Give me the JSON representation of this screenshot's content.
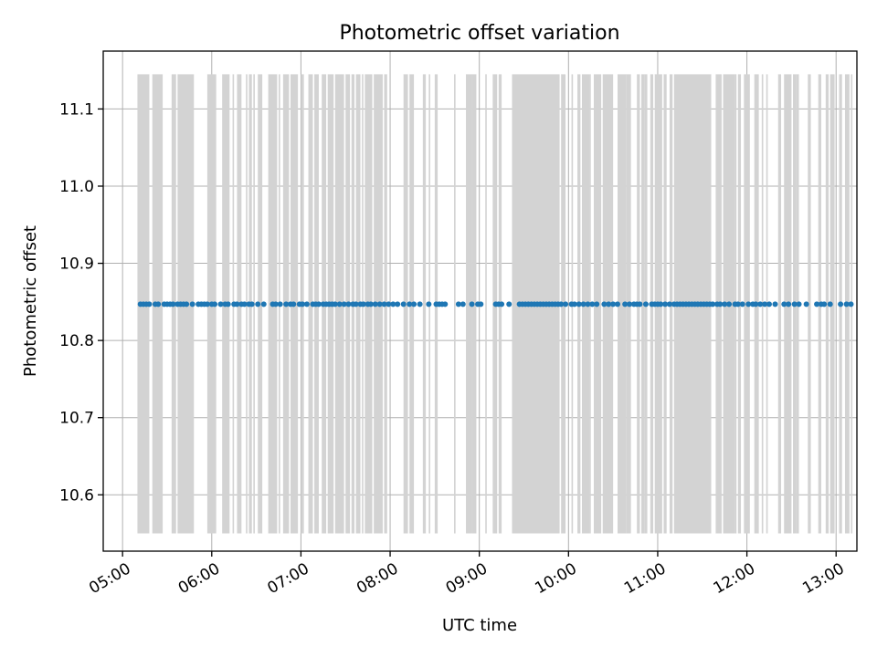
{
  "chart_data": {
    "type": "scatter",
    "title": "Photometric offset variation",
    "xlabel": "UTC time",
    "ylabel": "Photometric offset",
    "xlim": [
      "04:47",
      "13:14"
    ],
    "ylim": [
      10.527,
      11.175
    ],
    "grid": true,
    "x_tick_labels": [
      "05:00",
      "06:00",
      "07:00",
      "08:00",
      "09:00",
      "10:00",
      "11:00",
      "12:00",
      "13:00"
    ],
    "y_tick_labels": [
      "10.6",
      "10.7",
      "10.8",
      "10.9",
      "11.0",
      "11.1"
    ],
    "y_ticks": [
      10.6,
      10.7,
      10.8,
      10.9,
      11.0,
      11.1
    ],
    "shaded_band_y": [
      10.55,
      11.145
    ],
    "shaded_bands_utc": [
      [
        "05:10",
        "05:18"
      ],
      [
        "05:20",
        "05:27"
      ],
      [
        "05:33",
        "05:36"
      ],
      [
        "05:37",
        "05:46"
      ],
      [
        "05:46",
        "05:48"
      ],
      [
        "05:57",
        "06:03"
      ],
      [
        "06:07",
        "06:12"
      ],
      [
        "06:14",
        "06:15"
      ],
      [
        "06:17",
        "06:20"
      ],
      [
        "06:23",
        "06:24"
      ],
      [
        "06:25",
        "06:27"
      ],
      [
        "06:28",
        "06:29"
      ],
      [
        "06:31",
        "06:34"
      ],
      [
        "06:38",
        "06:44"
      ],
      [
        "06:45",
        "06:46"
      ],
      [
        "06:48",
        "06:52"
      ],
      [
        "06:53",
        "06:58"
      ],
      [
        "07:00",
        "07:02"
      ],
      [
        "07:05",
        "07:08"
      ],
      [
        "07:09",
        "07:12"
      ],
      [
        "07:14",
        "07:17"
      ],
      [
        "07:18",
        "07:22"
      ],
      [
        "07:23",
        "07:29"
      ],
      [
        "07:30",
        "07:33"
      ],
      [
        "07:34",
        "07:36"
      ],
      [
        "07:37",
        "07:40"
      ],
      [
        "07:41",
        "07:42"
      ],
      [
        "07:43",
        "07:48"
      ],
      [
        "07:49",
        "07:55"
      ],
      [
        "07:56",
        "07:58"
      ],
      [
        "08:09",
        "08:12"
      ],
      [
        "08:13",
        "08:16"
      ],
      [
        "08:22",
        "08:24"
      ],
      [
        "08:26",
        "08:27"
      ],
      [
        "08:30",
        "08:32"
      ],
      [
        "08:43",
        "08:44"
      ],
      [
        "08:51",
        "08:55"
      ],
      [
        "08:55",
        "08:58"
      ],
      [
        "09:04",
        "09:05"
      ],
      [
        "09:09",
        "09:12"
      ],
      [
        "09:13",
        "09:15"
      ],
      [
        "09:22",
        "09:26"
      ],
      [
        "09:26",
        "09:54"
      ],
      [
        "09:55",
        "09:58"
      ],
      [
        "10:02",
        "10:03"
      ],
      [
        "10:06",
        "10:08"
      ],
      [
        "10:09",
        "10:14"
      ],
      [
        "10:14",
        "10:15"
      ],
      [
        "10:17",
        "10:22"
      ],
      [
        "10:23",
        "10:30"
      ],
      [
        "10:33",
        "10:39"
      ],
      [
        "10:39",
        "10:42"
      ],
      [
        "10:46",
        "10:48"
      ],
      [
        "10:49",
        "10:51"
      ],
      [
        "10:51",
        "10:53"
      ],
      [
        "10:55",
        "10:57"
      ],
      [
        "10:58",
        "11:03"
      ],
      [
        "11:04",
        "11:06"
      ],
      [
        "11:08",
        "11:10"
      ],
      [
        "11:11",
        "11:36"
      ],
      [
        "11:39",
        "11:43"
      ],
      [
        "11:44",
        "11:52"
      ],
      [
        "11:52",
        "11:53"
      ],
      [
        "11:54",
        "11:56"
      ],
      [
        "11:58",
        "12:02"
      ],
      [
        "12:05",
        "12:08"
      ],
      [
        "12:10",
        "12:11"
      ],
      [
        "12:13",
        "12:14"
      ],
      [
        "12:21",
        "12:23"
      ],
      [
        "12:25",
        "12:30"
      ],
      [
        "12:31",
        "12:33"
      ],
      [
        "12:33",
        "12:35"
      ],
      [
        "12:41",
        "12:43"
      ],
      [
        "12:48",
        "12:50"
      ],
      [
        "12:53",
        "12:55"
      ],
      [
        "12:56",
        "12:59"
      ],
      [
        "13:02",
        "13:04"
      ],
      [
        "13:06",
        "13:09"
      ],
      [
        "13:10",
        "13:11"
      ]
    ],
    "point_y": 10.847,
    "point_color": "#1f77b4",
    "band_color": "#d3d3d3",
    "points_utc": [
      "05:12",
      "05:14",
      "05:16",
      "05:18",
      "05:22",
      "05:24",
      "05:28",
      "05:30",
      "05:32",
      "05:34",
      "05:37",
      "05:39",
      "05:41",
      "05:43",
      "05:47",
      "05:51",
      "05:53",
      "05:55",
      "05:57",
      "06:00",
      "06:02",
      "06:06",
      "06:09",
      "06:11",
      "06:15",
      "06:17",
      "06:20",
      "06:22",
      "06:25",
      "06:27",
      "06:31",
      "06:35",
      "06:41",
      "06:43",
      "06:46",
      "06:50",
      "06:53",
      "06:55",
      "06:59",
      "07:01",
      "07:04",
      "07:08",
      "07:10",
      "07:12",
      "07:15",
      "07:17",
      "07:19",
      "07:21",
      "07:23",
      "07:26",
      "07:29",
      "07:32",
      "07:35",
      "07:37",
      "07:40",
      "07:42",
      "07:45",
      "07:47",
      "07:50",
      "07:53",
      "07:56",
      "07:59",
      "08:02",
      "08:05",
      "08:09",
      "08:13",
      "08:16",
      "08:20",
      "08:26",
      "08:31",
      "08:33",
      "08:35",
      "08:37",
      "08:46",
      "08:49",
      "08:55",
      "08:59",
      "09:01",
      "09:11",
      "09:13",
      "09:15",
      "09:20",
      "09:27",
      "09:29",
      "09:31",
      "09:33",
      "09:35",
      "09:37",
      "09:39",
      "09:41",
      "09:43",
      "09:45",
      "09:47",
      "09:49",
      "09:51",
      "09:53",
      "09:55",
      "09:58",
      "10:02",
      "10:04",
      "10:07",
      "10:10",
      "10:13",
      "10:16",
      "10:19",
      "10:24",
      "10:27",
      "10:30",
      "10:33",
      "10:38",
      "10:41",
      "10:44",
      "10:46",
      "10:48",
      "10:52",
      "10:56",
      "10:58",
      "11:00",
      "11:02",
      "11:05",
      "11:08",
      "11:11",
      "11:13",
      "11:15",
      "11:17",
      "11:19",
      "11:21",
      "11:23",
      "11:25",
      "11:27",
      "11:29",
      "11:31",
      "11:33",
      "11:35",
      "11:37",
      "11:40",
      "11:42",
      "11:45",
      "11:48",
      "11:52",
      "11:54",
      "11:57",
      "12:01",
      "12:04",
      "12:06",
      "12:09",
      "12:12",
      "12:15",
      "12:19",
      "12:25",
      "12:28",
      "12:32",
      "12:35",
      "12:40",
      "12:47",
      "12:50",
      "12:52",
      "12:56",
      "13:03",
      "13:07",
      "13:10"
    ]
  }
}
